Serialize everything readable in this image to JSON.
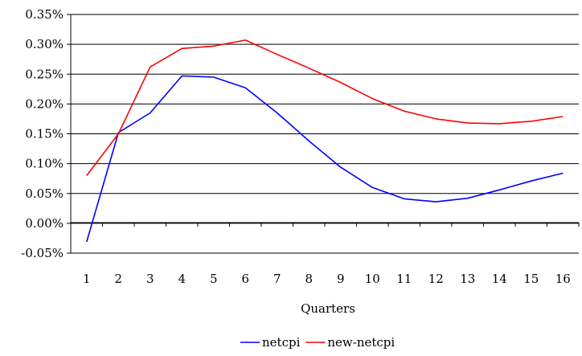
{
  "chart_data": {
    "type": "line",
    "title": "",
    "xlabel": "Quarters",
    "ylabel": "",
    "x": [
      1,
      2,
      3,
      4,
      5,
      6,
      7,
      8,
      9,
      10,
      11,
      12,
      13,
      14,
      15,
      16
    ],
    "y_ticks": [
      -0.05,
      0.0,
      0.05,
      0.1,
      0.15,
      0.2,
      0.25,
      0.3,
      0.35
    ],
    "y_tick_labels": [
      "-0.05%",
      "0.00%",
      "0.05%",
      "0.10%",
      "0.15%",
      "0.20%",
      "0.25%",
      "0.30%",
      "0.35%"
    ],
    "ylim": [
      -0.05,
      0.35
    ],
    "grid": "horizontal",
    "legend_position": "bottom",
    "series": [
      {
        "name": "netcpi",
        "color": "#0000ff",
        "values": [
          -0.031,
          0.152,
          0.185,
          0.247,
          0.245,
          0.227,
          0.185,
          0.138,
          0.094,
          0.06,
          0.041,
          0.036,
          0.042,
          0.056,
          0.071,
          0.084
        ]
      },
      {
        "name": "new-netcpi",
        "color": "#ff0000",
        "values": [
          0.08,
          0.15,
          0.262,
          0.293,
          0.297,
          0.307,
          0.283,
          0.26,
          0.236,
          0.209,
          0.188,
          0.175,
          0.168,
          0.167,
          0.171,
          0.179
        ]
      }
    ]
  }
}
